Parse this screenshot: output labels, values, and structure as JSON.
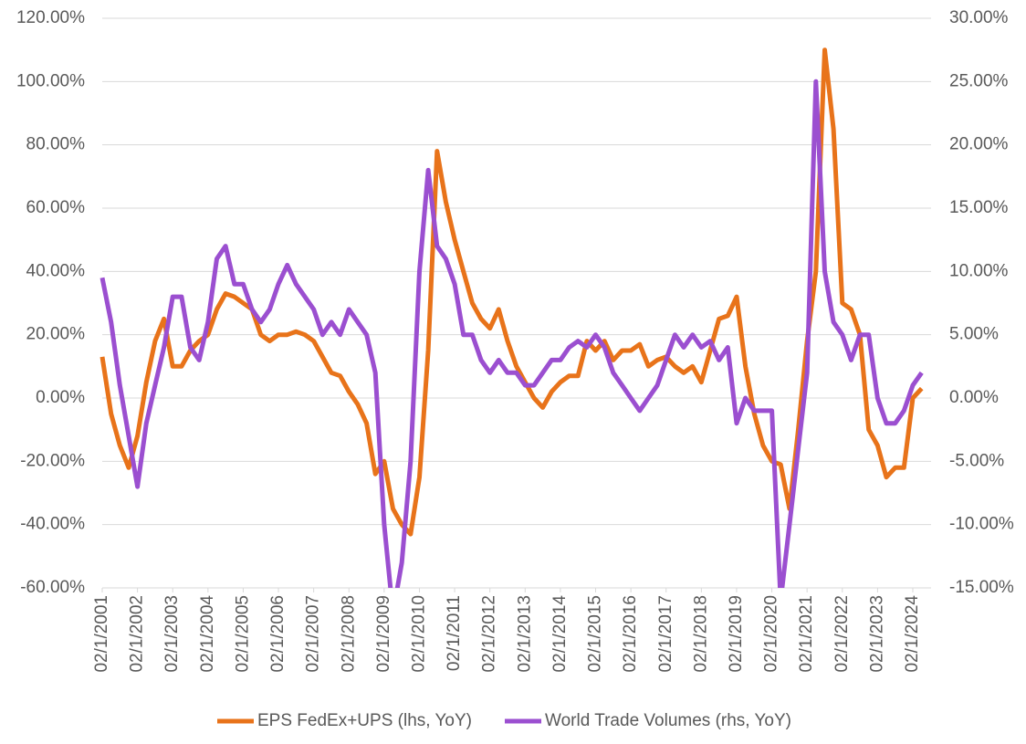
{
  "chart_data": {
    "type": "line",
    "x": [
      "02/1/2001",
      "05/1/2001",
      "08/1/2001",
      "11/1/2001",
      "02/1/2002",
      "05/1/2002",
      "08/1/2002",
      "11/1/2002",
      "02/1/2003",
      "05/1/2003",
      "08/1/2003",
      "11/1/2003",
      "02/1/2004",
      "05/1/2004",
      "08/1/2004",
      "11/1/2004",
      "02/1/2005",
      "05/1/2005",
      "08/1/2005",
      "11/1/2005",
      "02/1/2006",
      "05/1/2006",
      "08/1/2006",
      "11/1/2006",
      "02/1/2007",
      "05/1/2007",
      "08/1/2007",
      "11/1/2007",
      "02/1/2008",
      "05/1/2008",
      "08/1/2008",
      "11/1/2008",
      "02/1/2009",
      "05/1/2009",
      "08/1/2009",
      "11/1/2009",
      "02/1/2010",
      "05/1/2010",
      "08/1/2010",
      "11/1/2010",
      "02/1/2011",
      "05/1/2011",
      "08/1/2011",
      "11/1/2011",
      "02/1/2012",
      "05/1/2012",
      "08/1/2012",
      "11/1/2012",
      "02/1/2013",
      "05/1/2013",
      "08/1/2013",
      "11/1/2013",
      "02/1/2014",
      "05/1/2014",
      "08/1/2014",
      "11/1/2014",
      "02/1/2015",
      "05/1/2015",
      "08/1/2015",
      "11/1/2015",
      "02/1/2016",
      "05/1/2016",
      "08/1/2016",
      "11/1/2016",
      "02/1/2017",
      "05/1/2017",
      "08/1/2017",
      "11/1/2017",
      "02/1/2018",
      "05/1/2018",
      "08/1/2018",
      "11/1/2018",
      "02/1/2019",
      "05/1/2019",
      "08/1/2019",
      "11/1/2019",
      "02/1/2020",
      "05/1/2020",
      "08/1/2020",
      "11/1/2020",
      "02/1/2021",
      "05/1/2021",
      "08/1/2021",
      "11/1/2021",
      "02/1/2022",
      "05/1/2022",
      "08/1/2022",
      "11/1/2022",
      "02/1/2023",
      "05/1/2023",
      "08/1/2023",
      "11/1/2023",
      "02/1/2024",
      "05/1/2024"
    ],
    "xticks": [
      "02/1/2001",
      "02/1/2002",
      "02/1/2003",
      "02/1/2004",
      "02/1/2005",
      "02/1/2006",
      "02/1/2007",
      "02/1/2008",
      "02/1/2009",
      "02/1/2010",
      "02/1/2011",
      "02/1/2012",
      "02/1/2013",
      "02/1/2014",
      "02/1/2015",
      "02/1/2016",
      "02/1/2017",
      "02/1/2018",
      "02/1/2019",
      "02/1/2020",
      "02/1/2021",
      "02/1/2022",
      "02/1/2023",
      "02/1/2024"
    ],
    "ylim": [
      -60,
      120
    ],
    "yticks": [
      {
        "value": -60,
        "label": "-60.00%"
      },
      {
        "value": -40,
        "label": "-40.00%"
      },
      {
        "value": -20,
        "label": "-20.00%"
      },
      {
        "value": 0,
        "label": "0.00%"
      },
      {
        "value": 20,
        "label": "20.00%"
      },
      {
        "value": 40,
        "label": "40.00%"
      },
      {
        "value": 60,
        "label": "60.00%"
      },
      {
        "value": 80,
        "label": "80.00%"
      },
      {
        "value": 100,
        "label": "100.00%"
      },
      {
        "value": 120,
        "label": "120.00%"
      }
    ],
    "y2lim": [
      -15,
      30
    ],
    "y2ticks": [
      {
        "value": -15,
        "label": "-15.00%"
      },
      {
        "value": -10,
        "label": "-10.00%"
      },
      {
        "value": -5,
        "label": "-5.00%"
      },
      {
        "value": 0,
        "label": "0.00%"
      },
      {
        "value": 5,
        "label": "5.00%"
      },
      {
        "value": 10,
        "label": "10.00%"
      },
      {
        "value": 15,
        "label": "15.00%"
      },
      {
        "value": 20,
        "label": "20.00%"
      },
      {
        "value": 25,
        "label": "25.00%"
      },
      {
        "value": 30,
        "label": "30.00%"
      }
    ],
    "grid": true,
    "legend": "bottom",
    "series": [
      {
        "name": "EPS FedEx+UPS (lhs, YoY)",
        "color": "#e8731a",
        "values": [
          13,
          -5,
          -15,
          -22,
          -12,
          5,
          18,
          25,
          10,
          10,
          15,
          18,
          20,
          28,
          33,
          32,
          30,
          28,
          20,
          18,
          20,
          20,
          21,
          20,
          18,
          13,
          8,
          7,
          2,
          -2,
          -8,
          -24,
          -20,
          -35,
          -40,
          -43,
          -25,
          15,
          78,
          62,
          50,
          40,
          30,
          25,
          22,
          28,
          18,
          10,
          5,
          0,
          -3,
          2,
          5,
          7,
          7,
          18,
          15,
          18,
          12,
          15,
          15,
          17,
          10,
          12,
          13,
          10,
          8,
          10,
          5,
          15,
          25,
          26,
          32,
          10,
          -5,
          -15,
          -20,
          -21,
          -35,
          -10,
          18,
          40,
          110,
          85,
          30,
          28,
          20,
          -10,
          -15,
          -25,
          -22,
          -22,
          0,
          3
        ]
      },
      {
        "name": "World Trade Volumes (rhs, YoY)",
        "color": "#9b4fd0",
        "axis": "y2",
        "values": [
          9.5,
          6,
          1,
          -3,
          -7,
          -2,
          1,
          4,
          8,
          8,
          4,
          3,
          6,
          11,
          12,
          9,
          9,
          7,
          6,
          7,
          9,
          10.5,
          9,
          8,
          7,
          5,
          6,
          5,
          7,
          6,
          5,
          2,
          -10,
          -17,
          -13,
          -5,
          10,
          18,
          12,
          11,
          9,
          5,
          5,
          3,
          2,
          3,
          2,
          2,
          1,
          1,
          2,
          3,
          3,
          4,
          4.5,
          4,
          5,
          4,
          2,
          1,
          0,
          -1,
          0,
          1,
          3,
          5,
          4,
          5,
          4,
          4.5,
          3,
          4,
          -2,
          0,
          -1,
          -1,
          -1,
          -16,
          -10,
          -4,
          2,
          25,
          10,
          6,
          5,
          3,
          5,
          5,
          0,
          -2,
          -2,
          -1,
          1,
          2
        ]
      }
    ]
  }
}
